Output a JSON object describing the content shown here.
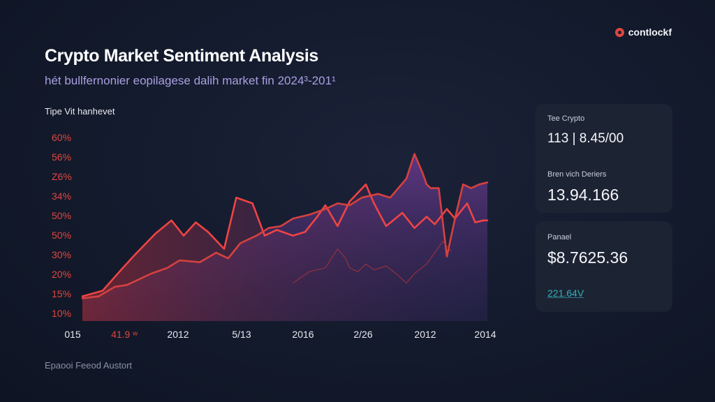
{
  "brand": {
    "name": "contlockf",
    "icon": "logo-circle-icon",
    "icon_color": "#e0463f"
  },
  "header": {
    "title": "Crypto Market Sentiment Analysis",
    "subtitle": "hét bullfernonier eopilagese dalih market fin 2024³-201¹"
  },
  "chart_label": "Tipe Vit hanhevet",
  "footer": {
    "source": "Epaooi Feeod Austort"
  },
  "cards": [
    {
      "items": [
        {
          "label": "Tee Crypto",
          "value": "113 | 8.45/00"
        },
        {
          "label": "Bren vich Deriers",
          "value": "13.94.166"
        }
      ]
    },
    {
      "items": [
        {
          "label": "Panael",
          "value": "$8.7625.36",
          "sub": "221.64V"
        }
      ]
    }
  ],
  "chart_data": {
    "type": "area",
    "title": "",
    "xlabel": "",
    "ylabel": "",
    "y_tick_labels": [
      "60%",
      "56%",
      "Z6%",
      "34%",
      "50%",
      "50%",
      "30%",
      "20%",
      "15%",
      "10%"
    ],
    "x_tick_labels": [
      "015",
      "41.9 ʷ",
      "2012",
      "5/13",
      "2016",
      "2/26",
      "2012",
      "2014"
    ],
    "grid": false,
    "legend": "none",
    "y_range": [
      0,
      100
    ],
    "x_range": [
      0,
      100
    ],
    "colors": {
      "primary_line": "#ef4444",
      "secondary_line": "#d6413f",
      "thin_line": "#b8343a",
      "fill_top": "#6b3a8f",
      "fill_bottom": "#2a2450",
      "y_tick": "#e0463f",
      "x_tick": "#e8eaf0"
    },
    "series": [
      {
        "x": [
          0,
          5,
          10,
          13,
          18,
          22,
          25,
          28,
          31,
          35,
          38,
          42,
          45,
          48,
          52,
          55,
          58,
          60,
          63,
          66,
          70,
          72,
          75,
          79,
          82,
          85,
          87,
          90,
          92,
          95,
          97,
          99,
          100
        ],
        "values": [
          13,
          16,
          28,
          35,
          46,
          53,
          45,
          52,
          47,
          38,
          65,
          62,
          45,
          48,
          45,
          47,
          55,
          61,
          50,
          63,
          72,
          62,
          50,
          57,
          49,
          55,
          51,
          59,
          54,
          62,
          52,
          53,
          53
        ]
      },
      {
        "x": [
          0,
          4,
          8,
          11,
          14,
          17,
          21,
          24,
          29,
          33,
          36,
          39,
          43,
          46,
          49,
          52,
          56,
          60,
          63,
          66,
          69,
          73,
          76,
          78,
          80,
          82,
          84,
          85,
          86,
          88,
          89,
          90,
          92,
          94,
          96,
          98,
          100
        ],
        "values": [
          12,
          13,
          18,
          19,
          22,
          25,
          28,
          32,
          31,
          36,
          33,
          41,
          45,
          49,
          50,
          54,
          56,
          59,
          62,
          61,
          65,
          67,
          65,
          70,
          75,
          88,
          78,
          72,
          70,
          70,
          52,
          34,
          54,
          72,
          70,
          72,
          73
        ]
      },
      {
        "x": [
          52,
          56,
          60,
          63,
          65,
          66,
          68,
          70,
          72,
          75,
          78,
          80,
          82,
          85,
          87,
          89,
          91
        ],
        "values": [
          20,
          26,
          28,
          38,
          33,
          28,
          26,
          30,
          27,
          29,
          24,
          20,
          25,
          30,
          36,
          42,
          37
        ]
      }
    ]
  }
}
